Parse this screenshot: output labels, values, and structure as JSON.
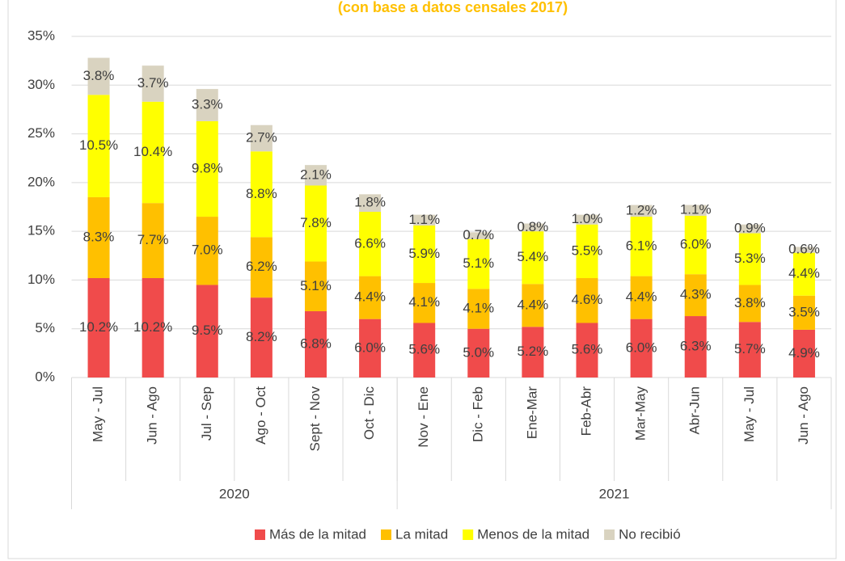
{
  "chart_data": {
    "type": "stacked-bar",
    "subtitle": "(con base a datos censales 2017)",
    "groups": [
      {
        "name": "2020",
        "categories": [
          "May - Jul",
          "Jun - Ago",
          "Jul - Sep",
          "Ago - Oct",
          "Sept - Nov",
          "Oct - Dic"
        ]
      },
      {
        "name": "2021",
        "categories": [
          "Nov - Ene",
          "Dic - Feb",
          "Ene-Mar",
          "Feb-Abr",
          "Mar-May",
          "Abr-Jun",
          "May - Jul",
          "Jun - Ago"
        ]
      }
    ],
    "series": [
      {
        "name": "Más de la mitad",
        "color": "#f04b4b",
        "values": [
          10.2,
          10.2,
          9.5,
          8.2,
          6.8,
          6.0,
          5.6,
          5.0,
          5.2,
          5.6,
          6.0,
          6.3,
          5.7,
          4.9
        ],
        "value_labels": [
          "10.2%",
          "10.2%",
          "9.5%",
          "8.2%",
          "6.8%",
          "6.0%",
          "5.6%",
          "5.0%",
          "5.2%",
          "5.6%",
          "6.0%",
          "6.3%",
          "5.7%",
          "4.9%"
        ]
      },
      {
        "name": "La mitad",
        "color": "#ffc000",
        "values": [
          8.3,
          7.7,
          7.0,
          6.2,
          5.1,
          4.4,
          4.1,
          4.1,
          4.4,
          4.6,
          4.4,
          4.3,
          3.8,
          3.5
        ],
        "value_labels": [
          "8.3%",
          "7.7%",
          "7.0%",
          "6.2%",
          "5.1%",
          "4.4%",
          "4.1%",
          "4.1%",
          "4.4%",
          "4.6%",
          "4.4%",
          "4.3%",
          "3.8%",
          "3.5%"
        ]
      },
      {
        "name": "Menos de la mitad",
        "color": "#ffff00",
        "values": [
          10.5,
          10.4,
          9.8,
          8.8,
          7.8,
          6.6,
          5.9,
          5.1,
          5.4,
          5.5,
          6.1,
          6.0,
          5.3,
          4.4
        ],
        "value_labels": [
          "10.5%",
          "10.4%",
          "9.8%",
          "8.8%",
          "7.8%",
          "6.6%",
          "5.9%",
          "5.1%",
          "5.4%",
          "5.5%",
          "6.1%",
          "6.0%",
          "5.3%",
          "4.4%"
        ]
      },
      {
        "name": "No recibió",
        "color": "#d9d3c0",
        "values": [
          3.8,
          3.7,
          3.3,
          2.7,
          2.1,
          1.8,
          1.1,
          0.7,
          0.8,
          1.0,
          1.2,
          1.1,
          0.9,
          0.6
        ],
        "value_labels": [
          "3.8%",
          "3.7%",
          "3.3%",
          "2.7%",
          "2.1%",
          "1.8%",
          "1.1%",
          "0.7%",
          "0.8%",
          "1.0%",
          "1.2%",
          "1.1%",
          "0.9%",
          "0.6%"
        ]
      }
    ],
    "ylim": [
      0,
      35
    ],
    "yticks": [
      {
        "value": 0,
        "label": "0%"
      },
      {
        "value": 5,
        "label": "5%"
      },
      {
        "value": 10,
        "label": "10%"
      },
      {
        "value": 15,
        "label": "15%"
      },
      {
        "value": 20,
        "label": "20%"
      },
      {
        "value": 25,
        "label": "25%"
      },
      {
        "value": 30,
        "label": "30%"
      },
      {
        "value": 35,
        "label": "35%"
      }
    ],
    "grid": true,
    "legend": "bottom"
  }
}
